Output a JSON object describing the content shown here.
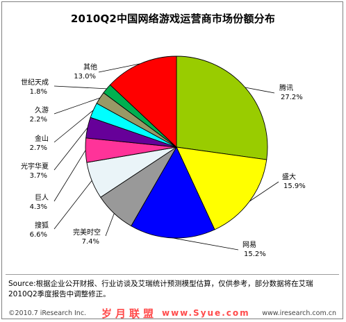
{
  "chart_data": {
    "type": "pie",
    "title": "2010Q2中国网络游戏运营商市场份额分布",
    "categories": [
      "腾讯",
      "盛大",
      "网易",
      "完美时空",
      "搜狐",
      "巨人",
      "光宇华夏",
      "金山",
      "久游",
      "世纪天成",
      "其他"
    ],
    "values": [
      27.2,
      15.9,
      15.2,
      7.4,
      6.6,
      4.3,
      3.7,
      2.7,
      2.2,
      1.8,
      13.0
    ],
    "value_labels": [
      "27.2%",
      "15.9%",
      "15.2%",
      "7.4%",
      "6.6%",
      "4.3%",
      "3.7%",
      "2.7%",
      "2.2%",
      "1.8%",
      "13.0%"
    ],
    "colors": [
      "#99cc00",
      "#ffff00",
      "#0000ff",
      "#999999",
      "#eaf4f8",
      "#ff3399",
      "#660099",
      "#00ffff",
      "#999966",
      "#00b050",
      "#ff0000"
    ],
    "unit": "%",
    "legend": "none",
    "labels_with_leader_lines": true
  },
  "source_note": "Source:根据企业公开财报、行业访谈及艾瑞统计预测模型估算，仅供参考，部分数据将在艾瑞2010Q2季度报告中调整修正。",
  "footer": {
    "copyright": "©2010.7 iResearch Inc.",
    "watermark": "岁月联盟",
    "site": "www.Syue.com",
    "url": "www.iresearch.com.cn"
  }
}
